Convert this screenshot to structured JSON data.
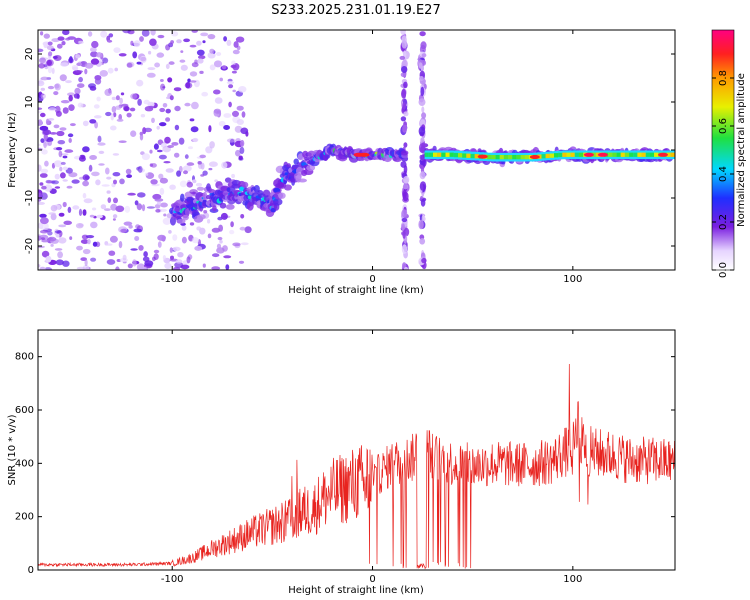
{
  "title": "S233.2025.231.01.19.E27",
  "colors": {
    "snr_line": "#e8231f",
    "axes": "#000000",
    "background": "#ffffff"
  },
  "chart_data": [
    {
      "type": "heatmap",
      "name": "spectrogram",
      "xlabel": "Height of straight line (km)",
      "ylabel": "Frequency (Hz)",
      "xlim": [
        -167,
        151
      ],
      "ylim": [
        -25,
        25
      ],
      "xticks": [
        -100,
        0,
        100
      ],
      "xtick_labels": [
        "-100",
        "0",
        "100"
      ],
      "yticks": [
        -20,
        -10,
        0,
        10,
        20
      ],
      "ytick_labels": [
        "-20",
        "-10",
        "0",
        "10",
        "20"
      ],
      "colorbar": {
        "label": "Normalized spectral amplitude",
        "range": [
          0,
          1
        ],
        "ticks": [
          0.0,
          0.2,
          0.4,
          0.6,
          0.8
        ],
        "tick_labels": [
          "0.0",
          "0.2",
          "0.4",
          "0.6",
          "0.8"
        ]
      },
      "ridge": {
        "x": [
          -100,
          -90,
          -80,
          -70,
          -60,
          -50,
          -45,
          -40,
          -30,
          -20,
          -10,
          0,
          10,
          20,
          25,
          40,
          60,
          80,
          95,
          100,
          110,
          120,
          140,
          150
        ],
        "y": [
          -13,
          -12,
          -10,
          -9,
          -9,
          -12,
          -6,
          -5,
          -2,
          0,
          -1,
          -1,
          -1,
          -1,
          -1,
          -1,
          -1.5,
          -1.5,
          -1,
          -1,
          -1,
          -1,
          -1,
          -1
        ]
      },
      "gaps_x": [
        [
          16,
          26
        ]
      ]
    },
    {
      "type": "line",
      "name": "snr",
      "xlabel": "Height of straight line (km)",
      "ylabel": "SNR (10 * v/v)",
      "xlim": [
        -167,
        151
      ],
      "ylim": [
        0,
        900
      ],
      "xticks": [
        -100,
        0,
        100
      ],
      "xtick_labels": [
        "-100",
        "0",
        "100"
      ],
      "yticks": [
        0,
        200,
        400,
        600,
        800
      ],
      "ytick_labels": [
        "0",
        "200",
        "400",
        "600",
        "800"
      ],
      "series": [
        {
          "name": "SNR",
          "x": [
            -167,
            -140,
            -120,
            -100,
            -90,
            -80,
            -70,
            -60,
            -50,
            -40,
            -35,
            -30,
            -25,
            -20,
            -10,
            0,
            10,
            20,
            22,
            27,
            30,
            40,
            50,
            60,
            70,
            80,
            90,
            95,
            100,
            102,
            105,
            110,
            120,
            130,
            140,
            151
          ],
          "y": [
            20,
            20,
            20,
            25,
            45,
            80,
            110,
            140,
            165,
            190,
            220,
            225,
            265,
            290,
            320,
            340,
            400,
            420,
            450,
            450,
            425,
            400,
            390,
            400,
            395,
            395,
            410,
            440,
            445,
            580,
            460,
            440,
            430,
            410,
            410,
            405
          ]
        }
      ]
    }
  ]
}
